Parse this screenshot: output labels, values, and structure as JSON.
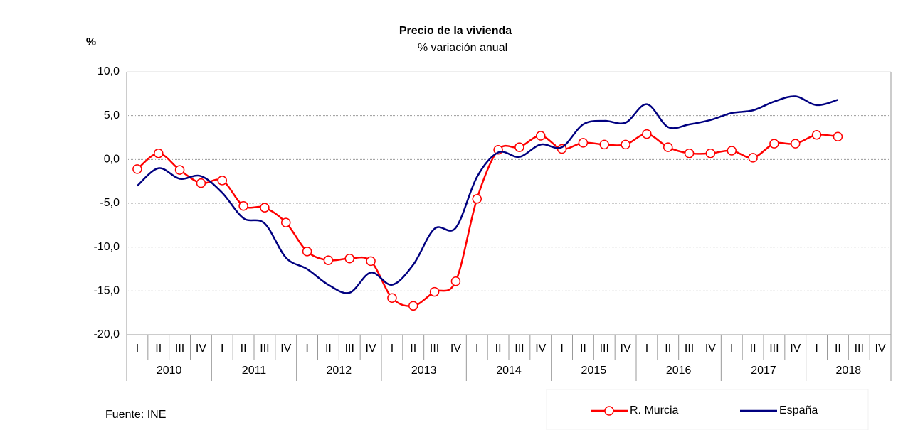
{
  "chart_data": {
    "type": "line",
    "title": "Precio de la vivienda",
    "subtitle": "% variación anual",
    "y_label": "%",
    "source": "Fuente: INE",
    "categories": [
      "I",
      "II",
      "III",
      "IV",
      "I",
      "II",
      "III",
      "IV",
      "I",
      "II",
      "III",
      "IV",
      "I",
      "II",
      "III",
      "IV",
      "I",
      "II",
      "III",
      "IV",
      "I",
      "II",
      "III",
      "IV",
      "I",
      "II",
      "III",
      "IV",
      "I",
      "II",
      "III",
      "IV",
      "I",
      "II",
      "III",
      "IV"
    ],
    "years": [
      "2010",
      "2011",
      "2012",
      "2013",
      "2014",
      "2015",
      "2016",
      "2017",
      "2018"
    ],
    "series": [
      {
        "name": "R. Murcia",
        "color": "#ff0000",
        "marker": true,
        "values": [
          -1.1,
          0.7,
          -1.2,
          -2.7,
          -2.4,
          -5.3,
          -5.5,
          -7.2,
          -10.5,
          -11.5,
          -11.3,
          -11.6,
          -15.8,
          -16.7,
          -15.1,
          -13.9,
          -4.5,
          1.1,
          1.4,
          2.7,
          1.2,
          1.9,
          1.7,
          1.7,
          2.9,
          1.4,
          0.7,
          0.7,
          1.0,
          0.2,
          1.8,
          1.8,
          2.8,
          2.6,
          null,
          null
        ]
      },
      {
        "name": "España",
        "color": "#000080",
        "marker": false,
        "values": [
          -3.0,
          -1.0,
          -2.2,
          -1.9,
          -3.8,
          -6.7,
          -7.3,
          -11.2,
          -12.5,
          -14.3,
          -15.2,
          -12.9,
          -14.3,
          -12.0,
          -7.9,
          -7.8,
          -2.0,
          0.8,
          0.3,
          1.7,
          1.4,
          4.0,
          4.4,
          4.2,
          6.3,
          3.7,
          4.0,
          4.5,
          5.3,
          5.6,
          6.6,
          7.2,
          6.2,
          6.8,
          null,
          null
        ]
      }
    ],
    "ylim": [
      -20,
      10
    ],
    "yticks": [
      {
        "value": -20,
        "label": "-20,0"
      },
      {
        "value": -15,
        "label": "-15,0"
      },
      {
        "value": -10,
        "label": "-10,0"
      },
      {
        "value": -5,
        "label": "-5,0"
      },
      {
        "value": 0,
        "label": "0,0"
      },
      {
        "value": 5,
        "label": "5,0"
      },
      {
        "value": 10,
        "label": "10,0"
      }
    ],
    "grid": true
  }
}
